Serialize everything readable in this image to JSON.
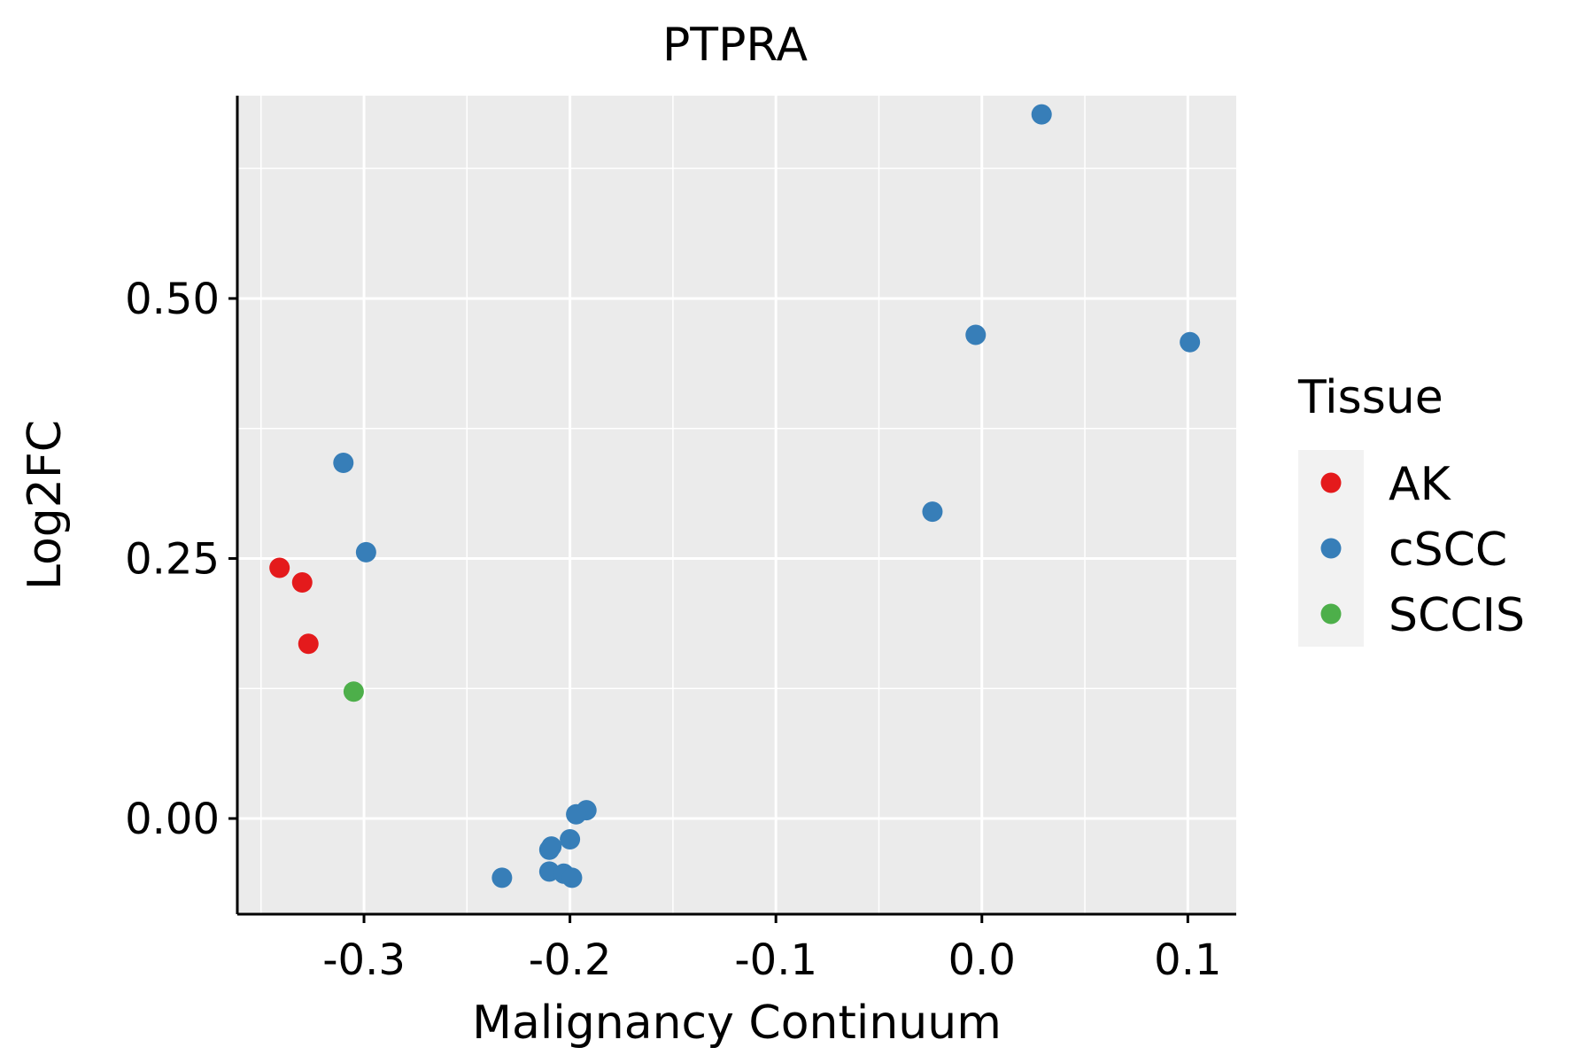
{
  "chart_data": {
    "type": "scatter",
    "title": "PTPRA",
    "xlabel": "Malignancy Continuum",
    "ylabel": "Log2FC",
    "xlim": [
      -0.3615,
      0.1235
    ],
    "ylim": [
      -0.092,
      0.695
    ],
    "x_ticks": [
      -0.3,
      -0.2,
      -0.1,
      0.0,
      0.1
    ],
    "x_tick_labels": [
      "-0.3",
      "-0.2",
      "-0.1",
      "0.0",
      "0.1"
    ],
    "y_ticks": [
      0.0,
      0.25,
      0.5
    ],
    "y_tick_labels": [
      "0.00",
      "0.25",
      "0.50"
    ],
    "grid": true,
    "background": "#EBEBEB",
    "legend": {
      "title": "Tissue",
      "position": "right",
      "entries": [
        {
          "label": "AK",
          "color": "#E41A1C"
        },
        {
          "label": "cSCC",
          "color": "#377EB8"
        },
        {
          "label": "SCCIS",
          "color": "#4DAF4A"
        }
      ]
    },
    "series": [
      {
        "name": "AK",
        "color": "#E41A1C",
        "points": [
          {
            "x": -0.341,
            "y": 0.241
          },
          {
            "x": -0.33,
            "y": 0.227
          },
          {
            "x": -0.327,
            "y": 0.168
          }
        ]
      },
      {
        "name": "cSCC",
        "color": "#377EB8",
        "points": [
          {
            "x": 0.029,
            "y": 0.677
          },
          {
            "x": -0.003,
            "y": 0.465
          },
          {
            "x": 0.101,
            "y": 0.458
          },
          {
            "x": -0.024,
            "y": 0.295
          },
          {
            "x": -0.31,
            "y": 0.342
          },
          {
            "x": -0.299,
            "y": 0.256
          },
          {
            "x": -0.192,
            "y": 0.008
          },
          {
            "x": -0.197,
            "y": 0.004
          },
          {
            "x": -0.2,
            "y": -0.02
          },
          {
            "x": -0.209,
            "y": -0.027
          },
          {
            "x": -0.21,
            "y": -0.03
          },
          {
            "x": -0.21,
            "y": -0.051
          },
          {
            "x": -0.203,
            "y": -0.053
          },
          {
            "x": -0.199,
            "y": -0.057
          },
          {
            "x": -0.233,
            "y": -0.057
          }
        ]
      },
      {
        "name": "SCCIS",
        "color": "#4DAF4A",
        "points": [
          {
            "x": -0.305,
            "y": 0.122
          }
        ]
      }
    ]
  }
}
